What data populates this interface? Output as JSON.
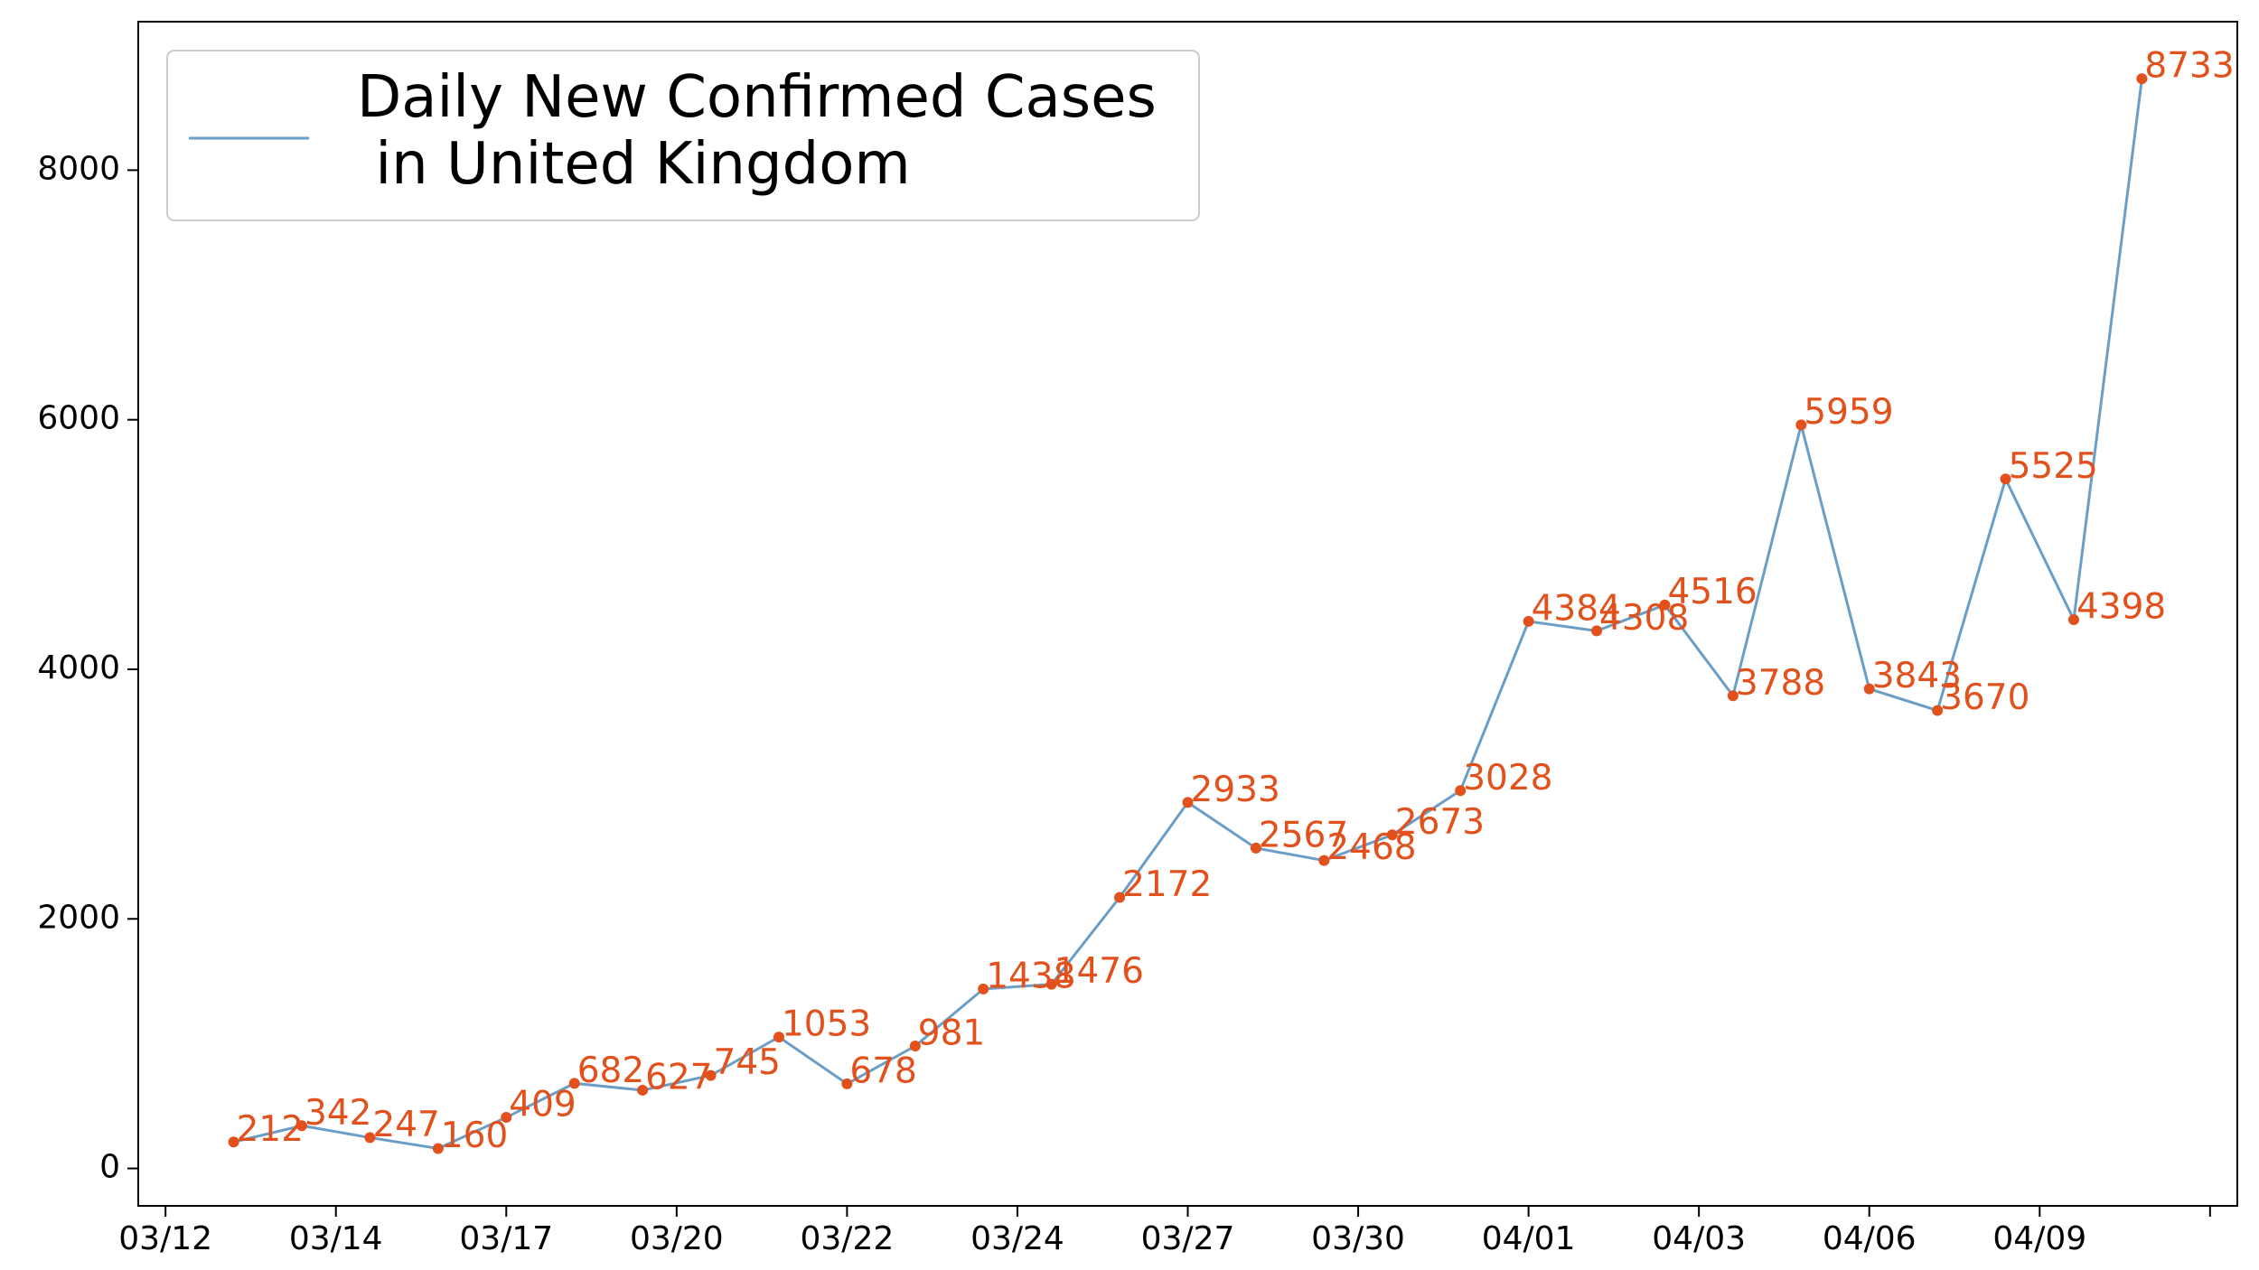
{
  "chart_data": {
    "type": "line",
    "series": [
      {
        "name": "Daily New Confirmed Cases\n in United Kingdom",
        "color": "#6a9ec7",
        "marker_color": "#e2501c",
        "values": [
          212,
          342,
          247,
          160,
          409,
          682,
          627,
          745,
          1053,
          678,
          981,
          1438,
          1476,
          2172,
          2933,
          2567,
          2468,
          2673,
          3028,
          4384,
          4308,
          4516,
          3788,
          5959,
          3843,
          3670,
          5525,
          4398,
          8733
        ]
      }
    ],
    "xlim": [
      -1.4,
      29.4
    ],
    "xticks": [
      {
        "value": -1,
        "label": "03/12"
      },
      {
        "value": 1.5,
        "label": "03/14"
      },
      {
        "value": 4,
        "label": "03/17"
      },
      {
        "value": 6.5,
        "label": "03/20"
      },
      {
        "value": 9,
        "label": "03/22"
      },
      {
        "value": 11.5,
        "label": "03/24"
      },
      {
        "value": 14,
        "label": "03/27"
      },
      {
        "value": 16.5,
        "label": "03/30"
      },
      {
        "value": 19,
        "label": "04/01"
      },
      {
        "value": 21.5,
        "label": "04/03"
      },
      {
        "value": 24,
        "label": "04/06"
      },
      {
        "value": 26.5,
        "label": "04/09"
      },
      {
        "value": 29,
        "label": null
      }
    ],
    "ylim": [
      -300,
      9190
    ],
    "yticks": [
      0,
      2000,
      4000,
      6000,
      8000
    ],
    "legend": "upper left",
    "grid": false,
    "data_labels": true
  }
}
